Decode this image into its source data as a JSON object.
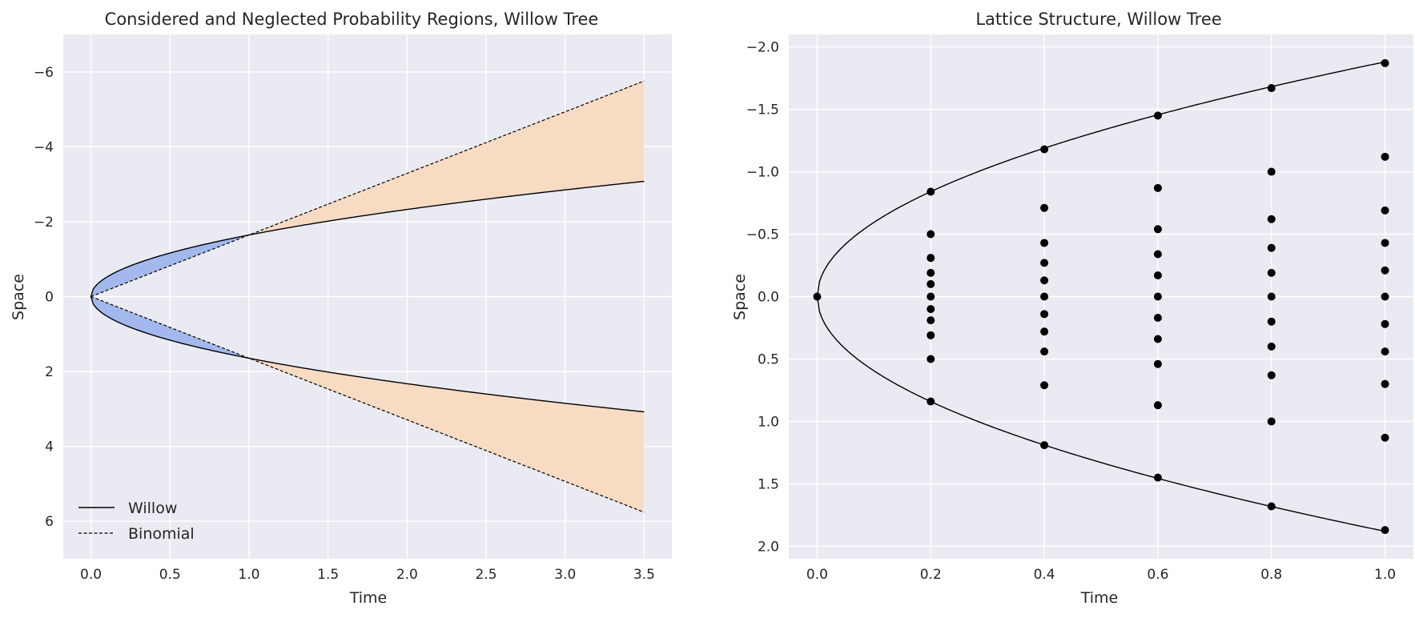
{
  "chart_data": [
    {
      "type": "area",
      "title": "Considered and Neglected Probability Regions, Willow Tree",
      "xlabel": "Time",
      "ylabel": "Space",
      "xlim": [
        -0.175,
        3.675
      ],
      "ylim": [
        -7,
        7
      ],
      "y_inverted": true,
      "xticks": [
        0.0,
        0.5,
        1.0,
        1.5,
        2.0,
        2.5,
        3.0,
        3.5
      ],
      "xtick_labels": [
        "0.0",
        "0.5",
        "1.0",
        "1.5",
        "2.0",
        "2.5",
        "3.0",
        "3.5"
      ],
      "yticks": [
        -6,
        -4,
        -2,
        0,
        2,
        4,
        6
      ],
      "ytick_labels": [
        "−6",
        "−4",
        "−2",
        "0",
        "2",
        "4",
        "6"
      ],
      "grid": true,
      "legend_position": "lower-left",
      "series": [
        {
          "name": "Willow",
          "style": "solid",
          "formula": "y = ±1.645·√t",
          "t_max": 3.5
        },
        {
          "name": "Binomial",
          "style": "dashed",
          "formula": "y = ±1.645·t",
          "t_max": 3.5
        }
      ],
      "regions": [
        {
          "label": "considered",
          "t_range": [
            0,
            1
          ],
          "color": "#a3b9ee"
        },
        {
          "label": "neglected",
          "t_range": [
            1,
            3.5
          ],
          "color": "#f7dbc3"
        }
      ],
      "legend": [
        "Willow",
        "Binomial"
      ]
    },
    {
      "type": "scatter",
      "title": "Lattice Structure, Willow Tree",
      "xlabel": "Time",
      "ylabel": "Space",
      "xlim": [
        -0.05,
        1.05
      ],
      "ylim": [
        -2.1,
        2.1
      ],
      "y_inverted": true,
      "xticks": [
        0.0,
        0.2,
        0.4,
        0.6,
        0.8,
        1.0
      ],
      "xtick_labels": [
        "0.0",
        "0.2",
        "0.4",
        "0.6",
        "0.8",
        "1.0"
      ],
      "yticks": [
        -2.0,
        -1.5,
        -1.0,
        -0.5,
        0.0,
        0.5,
        1.0,
        1.5,
        2.0
      ],
      "ytick_labels": [
        "−2.0",
        "−1.5",
        "−1.0",
        "−0.5",
        "0.0",
        "0.5",
        "1.0",
        "1.5",
        "2.0"
      ],
      "grid": true,
      "boundary": {
        "formula": "y = ±1.88·√t",
        "t_max": 1.0
      },
      "columns": [
        {
          "t": 0.0,
          "y": [
            0.0
          ]
        },
        {
          "t": 0.2,
          "y": [
            -0.84,
            -0.5,
            -0.31,
            -0.19,
            -0.1,
            0.0,
            0.1,
            0.19,
            0.31,
            0.5,
            0.84
          ]
        },
        {
          "t": 0.4,
          "y": [
            -1.18,
            -0.71,
            -0.43,
            -0.27,
            -0.13,
            0.0,
            0.14,
            0.28,
            0.44,
            0.71,
            1.19
          ]
        },
        {
          "t": 0.6,
          "y": [
            -1.45,
            -0.87,
            -0.54,
            -0.34,
            -0.17,
            0.0,
            0.17,
            0.34,
            0.54,
            0.87,
            1.45
          ]
        },
        {
          "t": 0.8,
          "y": [
            -1.67,
            -1.0,
            -0.62,
            -0.39,
            -0.19,
            0.0,
            0.2,
            0.4,
            0.63,
            1.0,
            1.68
          ]
        },
        {
          "t": 1.0,
          "y": [
            -1.87,
            -1.12,
            -0.69,
            -0.43,
            -0.21,
            0.0,
            0.22,
            0.44,
            0.7,
            1.13,
            1.87
          ]
        }
      ]
    }
  ]
}
